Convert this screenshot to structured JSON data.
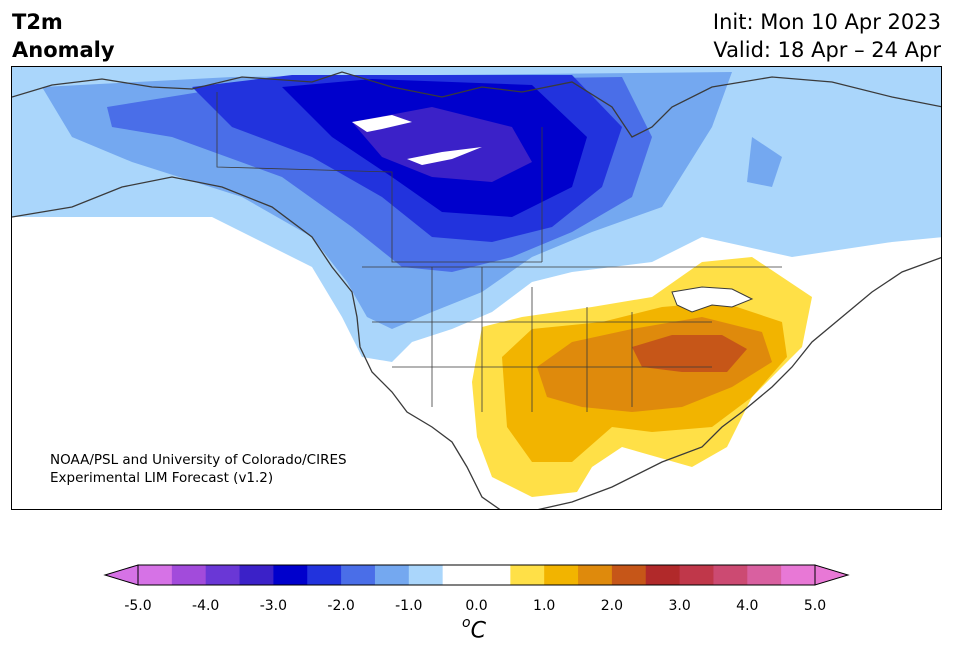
{
  "header": {
    "title_line1": "T2m",
    "title_line2": "Anomaly",
    "init_label": "Init: Mon 10 Apr 2023",
    "valid_label": "Valid: 18 Apr – 24 Apr"
  },
  "map": {
    "region": "North America",
    "credit_line1": "NOAA/PSL and University of Colorado/CIRES",
    "credit_line2": "Experimental LIM Forecast (v1.2)",
    "colors": {
      "land_outline": "#3a3a3a",
      "neutral": "#ffffff"
    }
  },
  "colorbar": {
    "unit_base": "C",
    "unit_sup": "o",
    "tick_labels": [
      "-5.0",
      "-4.0",
      "-3.0",
      "-2.0",
      "-1.0",
      "0.0",
      "1.0",
      "2.0",
      "3.0",
      "4.0",
      "5.0"
    ],
    "colors": [
      "#d672e6",
      "#a24bdb",
      "#6a37d6",
      "#3b21c8",
      "#0000cc",
      "#2233dd",
      "#4a6ee8",
      "#74a8f0",
      "#aad6fb",
      "#ffffff",
      "#ffffff",
      "#ffe047",
      "#f2b400",
      "#df8a0c",
      "#c65618",
      "#b1292a",
      "#c0374a",
      "#cc4a72",
      "#d960a0",
      "#e878d6"
    ]
  }
}
